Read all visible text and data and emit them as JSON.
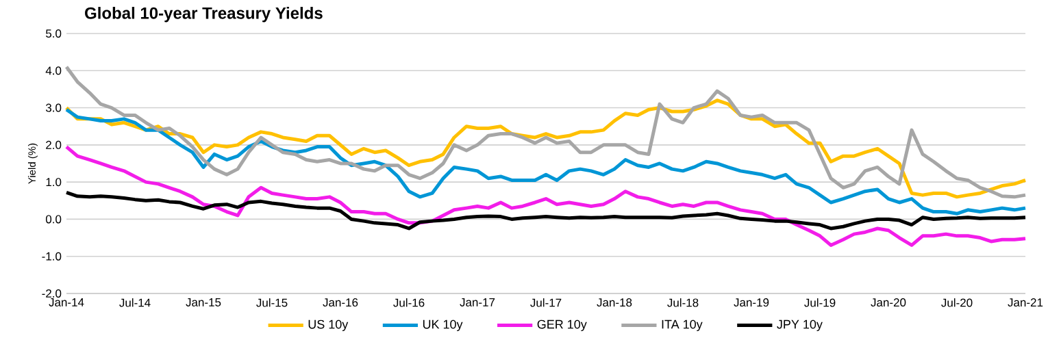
{
  "chart_data": {
    "type": "line",
    "title": "Global 10-year Treasury Yields",
    "ylabel": "Yield (%)",
    "x": [
      "2014-01",
      "2014-02",
      "2014-03",
      "2014-04",
      "2014-05",
      "2014-06",
      "2014-07",
      "2014-08",
      "2014-09",
      "2014-10",
      "2014-11",
      "2014-12",
      "2015-01",
      "2015-02",
      "2015-03",
      "2015-04",
      "2015-05",
      "2015-06",
      "2015-07",
      "2015-08",
      "2015-09",
      "2015-10",
      "2015-11",
      "2015-12",
      "2016-01",
      "2016-02",
      "2016-03",
      "2016-04",
      "2016-05",
      "2016-06",
      "2016-07",
      "2016-08",
      "2016-09",
      "2016-10",
      "2016-11",
      "2016-12",
      "2017-01",
      "2017-02",
      "2017-03",
      "2017-04",
      "2017-05",
      "2017-06",
      "2017-07",
      "2017-08",
      "2017-09",
      "2017-10",
      "2017-11",
      "2017-12",
      "2018-01",
      "2018-02",
      "2018-03",
      "2018-04",
      "2018-05",
      "2018-06",
      "2018-07",
      "2018-08",
      "2018-09",
      "2018-10",
      "2018-11",
      "2018-12",
      "2019-01",
      "2019-02",
      "2019-03",
      "2019-04",
      "2019-05",
      "2019-06",
      "2019-07",
      "2019-08",
      "2019-09",
      "2019-10",
      "2019-11",
      "2019-12",
      "2020-01",
      "2020-02",
      "2020-03",
      "2020-04",
      "2020-05",
      "2020-06",
      "2020-07",
      "2020-08",
      "2020-09",
      "2020-10",
      "2020-11",
      "2020-12",
      "2021-01"
    ],
    "series": [
      {
        "name": "US 10y",
        "color": "#ffc000",
        "values": [
          3.0,
          2.7,
          2.7,
          2.7,
          2.55,
          2.6,
          2.5,
          2.4,
          2.5,
          2.3,
          2.3,
          2.2,
          1.8,
          2.0,
          1.95,
          2.0,
          2.2,
          2.35,
          2.3,
          2.2,
          2.15,
          2.1,
          2.25,
          2.25,
          2.0,
          1.75,
          1.9,
          1.8,
          1.85,
          1.65,
          1.45,
          1.55,
          1.6,
          1.75,
          2.2,
          2.5,
          2.45,
          2.45,
          2.5,
          2.3,
          2.25,
          2.2,
          2.3,
          2.2,
          2.25,
          2.35,
          2.35,
          2.4,
          2.65,
          2.85,
          2.8,
          2.95,
          3.0,
          2.9,
          2.9,
          2.95,
          3.05,
          3.2,
          3.1,
          2.8,
          2.7,
          2.7,
          2.5,
          2.55,
          2.3,
          2.05,
          2.05,
          1.55,
          1.7,
          1.7,
          1.8,
          1.9,
          1.7,
          1.5,
          0.7,
          0.65,
          0.7,
          0.7,
          0.6,
          0.65,
          0.7,
          0.8,
          0.9,
          0.95,
          1.05
        ]
      },
      {
        "name": "UK 10y",
        "color": "#0096d6",
        "values": [
          2.95,
          2.75,
          2.7,
          2.65,
          2.65,
          2.7,
          2.6,
          2.4,
          2.4,
          2.2,
          2.0,
          1.8,
          1.4,
          1.75,
          1.6,
          1.7,
          1.95,
          2.1,
          1.95,
          1.85,
          1.8,
          1.85,
          1.95,
          1.95,
          1.65,
          1.45,
          1.5,
          1.55,
          1.45,
          1.15,
          0.75,
          0.6,
          0.7,
          1.1,
          1.4,
          1.35,
          1.3,
          1.1,
          1.15,
          1.05,
          1.05,
          1.05,
          1.2,
          1.05,
          1.3,
          1.35,
          1.3,
          1.2,
          1.35,
          1.6,
          1.45,
          1.4,
          1.5,
          1.35,
          1.3,
          1.4,
          1.55,
          1.5,
          1.4,
          1.3,
          1.25,
          1.2,
          1.1,
          1.2,
          0.95,
          0.85,
          0.65,
          0.45,
          0.55,
          0.65,
          0.75,
          0.8,
          0.55,
          0.45,
          0.55,
          0.3,
          0.2,
          0.2,
          0.15,
          0.25,
          0.2,
          0.25,
          0.3,
          0.25,
          0.3
        ]
      },
      {
        "name": "GER 10y",
        "color": "#f21de9",
        "values": [
          1.95,
          1.7,
          1.6,
          1.5,
          1.4,
          1.3,
          1.15,
          1.0,
          0.95,
          0.85,
          0.75,
          0.6,
          0.4,
          0.35,
          0.2,
          0.1,
          0.6,
          0.85,
          0.7,
          0.65,
          0.6,
          0.55,
          0.55,
          0.6,
          0.45,
          0.2,
          0.2,
          0.15,
          0.15,
          0.0,
          -0.1,
          -0.1,
          -0.05,
          0.1,
          0.25,
          0.3,
          0.35,
          0.3,
          0.45,
          0.3,
          0.35,
          0.45,
          0.55,
          0.4,
          0.45,
          0.4,
          0.35,
          0.4,
          0.55,
          0.75,
          0.6,
          0.55,
          0.45,
          0.35,
          0.4,
          0.35,
          0.45,
          0.45,
          0.35,
          0.25,
          0.2,
          0.15,
          0.0,
          0.0,
          -0.15,
          -0.3,
          -0.45,
          -0.7,
          -0.55,
          -0.4,
          -0.35,
          -0.25,
          -0.3,
          -0.5,
          -0.7,
          -0.45,
          -0.45,
          -0.4,
          -0.45,
          -0.45,
          -0.5,
          -0.6,
          -0.55,
          -0.55,
          -0.52
        ]
      },
      {
        "name": "ITA 10y",
        "color": "#a6a6a6",
        "values": [
          4.1,
          3.7,
          3.4,
          3.1,
          3.0,
          2.8,
          2.8,
          2.6,
          2.4,
          2.45,
          2.25,
          1.95,
          1.6,
          1.35,
          1.2,
          1.35,
          1.8,
          2.2,
          2.0,
          1.8,
          1.75,
          1.6,
          1.55,
          1.6,
          1.5,
          1.5,
          1.35,
          1.3,
          1.45,
          1.45,
          1.2,
          1.1,
          1.25,
          1.5,
          2.0,
          1.85,
          2.0,
          2.25,
          2.3,
          2.3,
          2.2,
          2.05,
          2.2,
          2.05,
          2.1,
          1.8,
          1.8,
          2.0,
          2.0,
          2.0,
          1.8,
          1.75,
          3.1,
          2.7,
          2.6,
          3.0,
          3.1,
          3.45,
          3.25,
          2.8,
          2.75,
          2.8,
          2.6,
          2.6,
          2.6,
          2.4,
          1.75,
          1.1,
          0.85,
          0.95,
          1.3,
          1.4,
          1.15,
          0.95,
          2.4,
          1.75,
          1.55,
          1.3,
          1.1,
          1.05,
          0.85,
          0.75,
          0.62,
          0.6,
          0.65
        ]
      },
      {
        "name": "JPY 10y",
        "color": "#000000",
        "values": [
          0.72,
          0.62,
          0.6,
          0.62,
          0.6,
          0.57,
          0.53,
          0.5,
          0.52,
          0.47,
          0.45,
          0.35,
          0.28,
          0.38,
          0.4,
          0.32,
          0.45,
          0.48,
          0.43,
          0.4,
          0.35,
          0.32,
          0.3,
          0.3,
          0.22,
          0.0,
          -0.05,
          -0.1,
          -0.12,
          -0.15,
          -0.25,
          -0.08,
          -0.05,
          -0.03,
          0.0,
          0.05,
          0.07,
          0.08,
          0.07,
          0.0,
          0.03,
          0.05,
          0.07,
          0.05,
          0.03,
          0.05,
          0.04,
          0.05,
          0.07,
          0.05,
          0.05,
          0.05,
          0.05,
          0.04,
          0.08,
          0.1,
          0.12,
          0.15,
          0.1,
          0.02,
          0.0,
          -0.02,
          -0.05,
          -0.05,
          -0.08,
          -0.12,
          -0.15,
          -0.25,
          -0.2,
          -0.12,
          -0.05,
          0.0,
          0.0,
          -0.03,
          -0.15,
          0.05,
          0.0,
          0.02,
          0.03,
          0.05,
          0.02,
          0.03,
          0.03,
          0.03,
          0.05
        ]
      }
    ],
    "xlim": [
      "2014-01",
      "2021-01"
    ],
    "xticks": [
      {
        "value": "2014-01",
        "label": "Jan-14"
      },
      {
        "value": "2014-07",
        "label": "Jul-14"
      },
      {
        "value": "2015-01",
        "label": "Jan-15"
      },
      {
        "value": "2015-07",
        "label": "Jul-15"
      },
      {
        "value": "2016-01",
        "label": "Jan-16"
      },
      {
        "value": "2016-07",
        "label": "Jul-16"
      },
      {
        "value": "2017-01",
        "label": "Jan-17"
      },
      {
        "value": "2017-07",
        "label": "Jul-17"
      },
      {
        "value": "2018-01",
        "label": "Jan-18"
      },
      {
        "value": "2018-07",
        "label": "Jul-18"
      },
      {
        "value": "2019-01",
        "label": "Jan-19"
      },
      {
        "value": "2019-07",
        "label": "Jul-19"
      },
      {
        "value": "2020-01",
        "label": "Jan-20"
      },
      {
        "value": "2020-07",
        "label": "Jul-20"
      },
      {
        "value": "2021-01",
        "label": "Jan-21"
      }
    ],
    "ylim": [
      -2,
      5
    ],
    "yticks": [
      {
        "value": -2,
        "label": "-2.0"
      },
      {
        "value": -1,
        "label": "-1.0"
      },
      {
        "value": 0,
        "label": "0.0"
      },
      {
        "value": 1,
        "label": "1.0"
      },
      {
        "value": 2,
        "label": "2.0"
      },
      {
        "value": 3,
        "label": "3.0"
      },
      {
        "value": 4,
        "label": "4.0"
      },
      {
        "value": 5,
        "label": "5.0"
      }
    ],
    "grid": "y",
    "legend": "bottom",
    "marker": "none",
    "line_style": "solid"
  }
}
